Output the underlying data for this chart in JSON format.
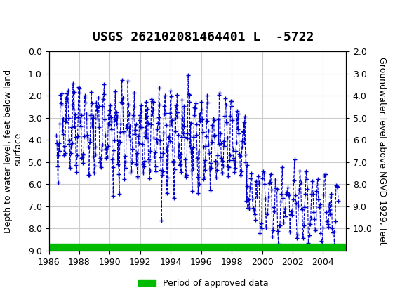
{
  "title": "USGS 262102081464401 L  -5722",
  "ylabel_left": "Depth to water level, feet below land\n surface",
  "ylabel_right": "Groundwater level above NGVD 1929, feet",
  "ylim_left": [
    0.0,
    9.0
  ],
  "ylim_right": [
    2.0,
    11.0
  ],
  "xlim": [
    1986,
    2005.5
  ],
  "xticks": [
    1986,
    1988,
    1990,
    1992,
    1994,
    1996,
    1998,
    2000,
    2002,
    2004
  ],
  "yticks_left": [
    0.0,
    1.0,
    2.0,
    3.0,
    4.0,
    5.0,
    6.0,
    7.0,
    8.0,
    9.0
  ],
  "yticks_right": [
    2.0,
    3.0,
    4.0,
    5.0,
    6.0,
    7.0,
    8.0,
    9.0,
    10.0
  ],
  "header_color": "#1a6b3c",
  "line_color": "#0000cc",
  "marker": "+",
  "marker_size": 4,
  "line_style": "--",
  "line_width": 0.8,
  "grid_color": "#cccccc",
  "background_color": "white",
  "approved_bar_color": "#00bb00",
  "legend_label": "Period of approved data",
  "title_fontsize": 13,
  "axis_label_fontsize": 9,
  "tick_fontsize": 9
}
